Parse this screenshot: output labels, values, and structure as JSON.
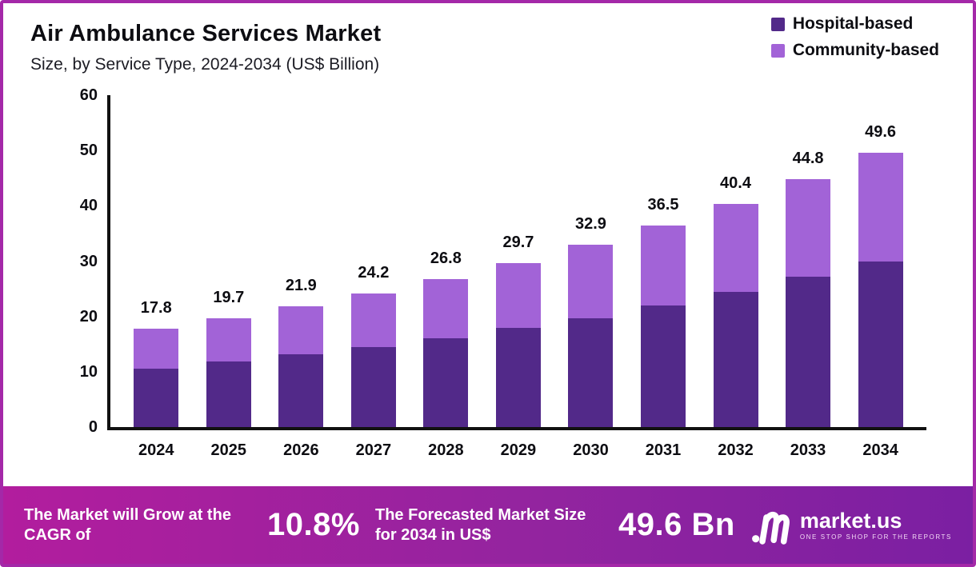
{
  "header": {
    "title": "Air Ambulance Services Market",
    "subtitle": "Size, by Service Type, 2024-2034 (US$ Billion)"
  },
  "legend": [
    {
      "label": "Hospital-based",
      "color": "#522989"
    },
    {
      "label": "Community-based",
      "color": "#a263d7"
    }
  ],
  "chart_data": {
    "type": "bar",
    "stacked": true,
    "title": "Air Ambulance Services Market",
    "subtitle": "Size, by Service Type, 2024-2034 (US$ Billion)",
    "categories": [
      "2024",
      "2025",
      "2026",
      "2027",
      "2028",
      "2029",
      "2030",
      "2031",
      "2032",
      "2033",
      "2034"
    ],
    "series": [
      {
        "name": "Hospital-based",
        "color": "#522989",
        "values": [
          10.6,
          11.8,
          13.1,
          14.5,
          16.1,
          18.0,
          19.7,
          22.0,
          24.4,
          27.2,
          30.0
        ]
      },
      {
        "name": "Community-based",
        "color": "#a263d7",
        "values": [
          7.2,
          7.9,
          8.8,
          9.7,
          10.7,
          11.7,
          13.2,
          14.5,
          16.0,
          17.6,
          19.6
        ]
      }
    ],
    "totals": [
      17.8,
      19.7,
      21.9,
      24.2,
      26.8,
      29.7,
      32.9,
      36.5,
      40.4,
      44.8,
      49.6
    ],
    "xlabel": "",
    "ylabel": "",
    "ylim": [
      0,
      60
    ],
    "yticks": [
      0,
      10,
      20,
      30,
      40,
      50,
      60
    ],
    "grid": false,
    "legend_position": "top-right",
    "unit": "US$ Billion"
  },
  "banner": {
    "cagr_label": "The Market will Grow at the CAGR of",
    "cagr_value": "10.8%",
    "forecast_label": "The Forecasted Market Size for 2034 in US$",
    "forecast_value": "49.6 Bn",
    "logo_text": "market.us",
    "logo_tagline": "ONE STOP SHOP FOR THE REPORTS",
    "gradient_left": "#b21d9e",
    "gradient_right": "#7b1fa2"
  }
}
